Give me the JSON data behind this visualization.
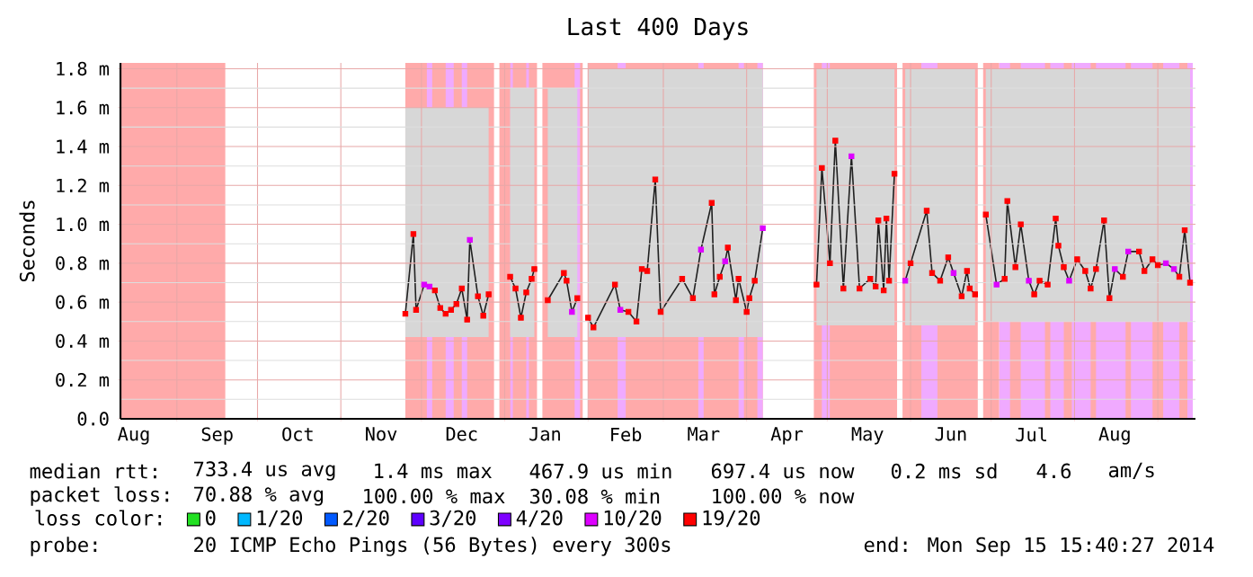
{
  "chart_data": {
    "type": "line",
    "title": "Last 400 Days",
    "ylabel": "Seconds",
    "xlim": [
      "2013-08-11",
      "2014-09-15"
    ],
    "xticks": [
      {
        "value": "2013-08-16",
        "label": "Aug"
      },
      {
        "value": "2013-09-01",
        "label": null
      },
      {
        "value": "2013-09-16",
        "label": "Sep"
      },
      {
        "value": "2013-10-01",
        "label": null
      },
      {
        "value": "2013-10-16",
        "label": "Oct"
      },
      {
        "value": "2013-11-01",
        "label": null
      },
      {
        "value": "2013-11-16",
        "label": "Nov"
      },
      {
        "value": "2013-12-01",
        "label": null
      },
      {
        "value": "2013-12-16",
        "label": "Dec"
      },
      {
        "value": "2014-01-01",
        "label": null
      },
      {
        "value": "2014-01-16",
        "label": "Jan"
      },
      {
        "value": "2014-02-01",
        "label": null
      },
      {
        "value": "2014-02-15",
        "label": "Feb"
      },
      {
        "value": "2014-03-01",
        "label": null
      },
      {
        "value": "2014-03-16",
        "label": "Mar"
      },
      {
        "value": "2014-04-01",
        "label": null
      },
      {
        "value": "2014-04-16",
        "label": "Apr"
      },
      {
        "value": "2014-05-01",
        "label": null
      },
      {
        "value": "2014-05-16",
        "label": "May"
      },
      {
        "value": "2014-06-01",
        "label": null
      },
      {
        "value": "2014-06-16",
        "label": "Jun"
      },
      {
        "value": "2014-07-01",
        "label": null
      },
      {
        "value": "2014-07-16",
        "label": "Jul"
      },
      {
        "value": "2014-08-01",
        "label": null
      },
      {
        "value": "2014-08-16",
        "label": "Aug"
      },
      {
        "value": "2014-09-01",
        "label": null
      }
    ],
    "ylim": [
      0,
      1.83
    ],
    "yticks": [
      {
        "value": 0,
        "label": "0.0"
      },
      {
        "value": 0.2,
        "label": "0.2 m"
      },
      {
        "value": 0.4,
        "label": "0.4 m"
      },
      {
        "value": 0.6,
        "label": "0.6 m"
      },
      {
        "value": 0.8,
        "label": "0.8 m"
      },
      {
        "value": 1.0,
        "label": "1.0 m"
      },
      {
        "value": 1.2,
        "label": "1.2 m"
      },
      {
        "value": 1.4,
        "label": "1.4 m"
      },
      {
        "value": 1.6,
        "label": "1.6 m"
      },
      {
        "value": 1.8,
        "label": "1.8 m"
      }
    ],
    "grid": true,
    "marker": "square",
    "legend": "bottom",
    "legend_title": "loss color:",
    "series": [
      {
        "type": "line",
        "color": "#202020",
        "marker": "none",
        "line_style": "solid",
        "x": [
          "2013-11-25",
          "2013-11-28",
          "2013-11-29",
          "2013-12-02",
          "2013-12-04",
          "2013-12-06",
          "2013-12-08",
          "2013-12-10",
          "2013-12-12",
          "2013-12-14",
          "2013-12-16",
          "2013-12-18",
          "2013-12-19",
          "2013-12-22",
          "2013-12-24",
          "2013-12-26",
          "2013-12-29",
          "2014-01-03",
          "2014-01-05",
          "2014-01-07",
          "2014-01-09",
          "2014-01-11",
          "2014-01-12",
          "2014-01-14",
          "2014-01-17",
          "2014-01-23",
          "2014-01-24",
          "2014-01-26",
          "2014-01-28",
          "2014-01-30",
          "2014-02-01",
          "2014-02-03",
          "2014-02-11",
          "2014-02-13",
          "2014-02-16",
          "2014-02-19",
          "2014-02-21",
          "2014-02-23",
          "2014-02-26",
          "2014-02-28",
          "2014-03-08",
          "2014-03-12",
          "2014-03-15",
          "2014-03-19",
          "2014-03-20",
          "2014-03-22",
          "2014-03-24",
          "2014-03-25",
          "2014-03-28",
          "2014-03-29",
          "2014-04-01",
          "2014-04-02",
          "2014-04-04",
          "2014-04-07",
          "2014-04-15",
          "2014-04-27",
          "2014-04-29",
          "2014-05-02",
          "2014-05-04",
          "2014-05-07",
          "2014-05-10",
          "2014-05-13",
          "2014-05-17",
          "2014-05-19",
          "2014-05-20",
          "2014-05-22",
          "2014-05-23",
          "2014-05-24",
          "2014-05-26",
          "2014-05-28",
          "2014-05-30",
          "2014-06-01",
          "2014-06-07",
          "2014-06-09",
          "2014-06-12",
          "2014-06-15",
          "2014-06-17",
          "2014-06-20",
          "2014-06-22",
          "2014-06-23",
          "2014-06-25",
          "2014-06-27",
          "2014-06-29",
          "2014-07-03",
          "2014-07-06",
          "2014-07-07",
          "2014-07-10",
          "2014-07-12",
          "2014-07-15",
          "2014-07-17",
          "2014-07-19",
          "2014-07-22",
          "2014-07-25",
          "2014-07-26",
          "2014-07-28",
          "2014-07-30",
          "2014-08-02",
          "2014-08-05",
          "2014-08-07",
          "2014-08-09",
          "2014-08-12",
          "2014-08-14",
          "2014-08-16",
          "2014-08-19",
          "2014-08-21",
          "2014-08-25",
          "2014-08-27",
          "2014-08-30",
          "2014-09-01",
          "2014-09-04",
          "2014-09-07",
          "2014-09-09",
          "2014-09-11",
          "2014-09-13"
        ],
        "values": [
          0.54,
          0.95,
          0.56,
          0.69,
          0.68,
          0.66,
          0.57,
          0.54,
          0.56,
          0.59,
          0.67,
          0.51,
          0.92,
          0.63,
          0.53,
          0.64,
          null,
          0.73,
          0.67,
          0.52,
          0.65,
          0.72,
          0.77,
          null,
          0.61,
          0.75,
          0.71,
          0.55,
          0.62,
          null,
          0.52,
          0.47,
          0.69,
          0.56,
          0.55,
          0.5,
          0.77,
          0.76,
          1.23,
          0.55,
          0.72,
          0.62,
          0.87,
          1.11,
          0.64,
          0.73,
          0.81,
          0.88,
          0.61,
          0.72,
          0.55,
          0.62,
          0.71,
          0.98,
          null,
          0.69,
          1.29,
          0.8,
          1.43,
          0.67,
          1.35,
          0.67,
          0.72,
          0.68,
          1.02,
          0.66,
          1.03,
          0.71,
          1.26,
          null,
          0.71,
          0.8,
          1.07,
          0.75,
          0.71,
          0.83,
          0.75,
          0.63,
          0.76,
          0.67,
          0.64,
          null,
          1.05,
          0.69,
          0.72,
          1.12,
          0.78,
          1.0,
          0.71,
          0.64,
          0.71,
          0.69,
          1.03,
          0.89,
          0.78,
          0.71,
          0.82,
          0.76,
          0.67,
          0.77,
          1.02,
          0.62,
          0.77,
          0.73,
          0.86,
          0.86,
          0.76,
          0.82,
          0.79,
          0.8,
          0.77,
          0.73,
          0.97,
          0.7
        ],
        "lower": [
          0.42,
          0.42,
          0.42,
          0.42,
          0.42,
          0.42,
          0.42,
          0.42,
          0.42,
          0.42,
          0.42,
          0.42,
          0.42,
          0.42,
          0.42,
          0.42,
          null,
          0.42,
          0.42,
          0.42,
          0.42,
          0.42,
          0.42,
          null,
          0.42,
          0.42,
          0.42,
          0.42,
          0.42,
          null,
          0.42,
          0.42,
          0.42,
          0.42,
          0.42,
          0.42,
          0.42,
          0.42,
          0.42,
          0.42,
          0.42,
          0.42,
          0.42,
          0.42,
          0.42,
          0.42,
          0.42,
          0.42,
          0.42,
          0.42,
          0.42,
          0.42,
          0.42,
          0.42,
          null,
          0.48,
          0.48,
          0.48,
          0.48,
          0.48,
          0.48,
          0.48,
          0.48,
          0.48,
          0.48,
          0.48,
          0.48,
          0.48,
          0.48,
          null,
          0.48,
          0.48,
          0.48,
          0.48,
          0.48,
          0.48,
          0.48,
          0.48,
          0.48,
          0.48,
          0.48,
          null,
          0.5,
          0.5,
          0.5,
          0.5,
          0.5,
          0.5,
          0.5,
          0.5,
          0.5,
          0.5,
          0.5,
          0.5,
          0.5,
          0.5,
          0.5,
          0.5,
          0.5,
          0.5,
          0.5,
          0.5,
          0.5,
          0.5,
          0.5,
          0.5,
          0.5,
          0.5,
          0.5,
          0.5,
          0.5,
          0.5,
          0.5,
          0.5
        ],
        "upper": [
          1.6,
          1.6,
          1.6,
          1.6,
          1.6,
          1.6,
          1.6,
          1.6,
          1.6,
          1.6,
          1.6,
          1.6,
          1.6,
          1.6,
          1.6,
          1.6,
          null,
          1.7,
          1.7,
          1.7,
          1.7,
          1.7,
          1.7,
          null,
          1.7,
          1.7,
          1.7,
          1.7,
          1.7,
          null,
          1.8,
          1.8,
          1.8,
          1.8,
          1.8,
          1.8,
          1.8,
          1.8,
          1.8,
          1.8,
          1.8,
          1.8,
          1.8,
          1.8,
          1.8,
          1.8,
          1.8,
          1.8,
          1.8,
          1.8,
          1.8,
          1.8,
          1.8,
          1.8,
          null,
          1.8,
          1.8,
          1.8,
          1.8,
          1.8,
          1.8,
          1.8,
          1.8,
          1.8,
          1.8,
          1.8,
          1.8,
          1.8,
          1.8,
          null,
          1.8,
          1.8,
          1.8,
          1.8,
          1.8,
          1.8,
          1.8,
          1.8,
          1.8,
          1.8,
          1.8,
          null,
          1.8,
          1.8,
          1.8,
          1.8,
          1.8,
          1.8,
          1.8,
          1.8,
          1.8,
          1.8,
          1.8,
          1.8,
          1.8,
          1.8,
          1.8,
          1.8,
          1.8,
          1.8,
          1.8,
          1.8,
          1.8,
          1.8,
          1.8,
          1.8,
          1.8,
          1.8,
          1.8,
          1.8,
          1.8,
          1.8,
          1.8,
          1.8
        ]
      },
      {
        "type": "scatter",
        "name": "0",
        "color": "#22e022"
      },
      {
        "type": "scatter",
        "name": "1/20",
        "color": "#00b8ff"
      },
      {
        "type": "scatter",
        "name": "2/20",
        "color": "#0059ff"
      },
      {
        "type": "scatter",
        "name": "3/20",
        "color": "#5e00ff"
      },
      {
        "type": "scatter",
        "name": "4/20",
        "color": "#7e00ff"
      },
      {
        "type": "scatter",
        "name": "10/20",
        "color": "#dd00ff",
        "x": [
          "2013-12-02",
          "2013-12-04",
          "2013-12-19",
          "2014-01-26",
          "2014-02-13",
          "2014-03-15",
          "2014-03-24",
          "2014-04-07",
          "2014-05-10",
          "2014-05-30",
          "2014-06-17",
          "2014-07-03",
          "2014-07-15",
          "2014-07-30",
          "2014-08-16",
          "2014-08-21",
          "2014-09-04",
          "2014-09-07"
        ],
        "values": [
          0.69,
          0.68,
          0.92,
          0.55,
          0.56,
          0.87,
          0.81,
          0.98,
          1.35,
          0.71,
          0.75,
          0.69,
          0.71,
          0.71,
          0.77,
          0.86,
          0.8,
          0.77
        ]
      },
      {
        "type": "scatter",
        "name": "19/20",
        "color": "#ff0000",
        "x": [
          "2013-11-25",
          "2013-11-28",
          "2013-11-29",
          "2013-12-06",
          "2013-12-08",
          "2013-12-10",
          "2013-12-12",
          "2013-12-14",
          "2013-12-16",
          "2013-12-18",
          "2013-12-22",
          "2013-12-24",
          "2013-12-26",
          "2014-01-03",
          "2014-01-05",
          "2014-01-07",
          "2014-01-09",
          "2014-01-11",
          "2014-01-12",
          "2014-01-17",
          "2014-01-23",
          "2014-01-24",
          "2014-01-28",
          "2014-02-01",
          "2014-02-03",
          "2014-02-11",
          "2014-02-16",
          "2014-02-19",
          "2014-02-21",
          "2014-02-23",
          "2014-02-26",
          "2014-02-28",
          "2014-03-08",
          "2014-03-12",
          "2014-03-19",
          "2014-03-20",
          "2014-03-22",
          "2014-03-25",
          "2014-03-28",
          "2014-03-29",
          "2014-04-01",
          "2014-04-02",
          "2014-04-04",
          "2014-04-27",
          "2014-04-29",
          "2014-05-02",
          "2014-05-04",
          "2014-05-07",
          "2014-05-13",
          "2014-05-17",
          "2014-05-19",
          "2014-05-20",
          "2014-05-22",
          "2014-05-23",
          "2014-05-24",
          "2014-05-26",
          "2014-06-01",
          "2014-06-07",
          "2014-06-09",
          "2014-06-12",
          "2014-06-15",
          "2014-06-20",
          "2014-06-22",
          "2014-06-23",
          "2014-06-25",
          "2014-06-29",
          "2014-07-06",
          "2014-07-07",
          "2014-07-10",
          "2014-07-12",
          "2014-07-17",
          "2014-07-19",
          "2014-07-22",
          "2014-07-25",
          "2014-07-26",
          "2014-07-28",
          "2014-08-02",
          "2014-08-05",
          "2014-08-07",
          "2014-08-09",
          "2014-08-12",
          "2014-08-14",
          "2014-08-19",
          "2014-08-25",
          "2014-08-27",
          "2014-08-30",
          "2014-09-01",
          "2014-09-09",
          "2014-09-11",
          "2014-09-13"
        ],
        "values": [
          0.54,
          0.95,
          0.56,
          0.66,
          0.57,
          0.54,
          0.56,
          0.59,
          0.67,
          0.51,
          0.63,
          0.53,
          0.64,
          0.73,
          0.67,
          0.52,
          0.65,
          0.72,
          0.77,
          0.61,
          0.75,
          0.71,
          0.62,
          0.52,
          0.47,
          0.69,
          0.55,
          0.5,
          0.77,
          0.76,
          1.23,
          0.55,
          0.72,
          0.62,
          1.11,
          0.64,
          0.73,
          0.88,
          0.61,
          0.72,
          0.55,
          0.62,
          0.71,
          0.69,
          1.29,
          0.8,
          1.43,
          0.67,
          0.67,
          0.72,
          0.68,
          1.02,
          0.66,
          1.03,
          0.71,
          1.26,
          0.8,
          1.07,
          0.75,
          0.71,
          0.83,
          0.63,
          0.76,
          0.67,
          0.64,
          1.05,
          0.72,
          1.12,
          0.78,
          1.0,
          0.64,
          0.71,
          0.69,
          1.03,
          0.89,
          0.78,
          0.82,
          0.76,
          0.67,
          0.77,
          1.02,
          0.62,
          0.73,
          0.86,
          0.76,
          0.82,
          0.79,
          0.73,
          0.97,
          0.7
        ]
      }
    ],
    "bands": [
      {
        "axis": "x",
        "from": "2013-08-11",
        "to": "2013-09-19",
        "color": "#ffaaaa"
      },
      {
        "axis": "x",
        "from": "2013-11-25",
        "to": "2013-12-28",
        "color": "#ffaaaa"
      },
      {
        "axis": "x",
        "from": "2013-12-30",
        "to": "2014-01-13",
        "color": "#ffaaaa"
      },
      {
        "axis": "x",
        "from": "2014-01-15",
        "to": "2014-01-30",
        "color": "#ffaaaa"
      },
      {
        "axis": "x",
        "from": "2014-02-01",
        "to": "2014-04-07",
        "color": "#ffaaaa"
      },
      {
        "axis": "x",
        "from": "2014-04-26",
        "to": "2014-05-27",
        "color": "#ffaaaa"
      },
      {
        "axis": "x",
        "from": "2014-05-29",
        "to": "2014-06-26",
        "color": "#ffaaaa"
      },
      {
        "axis": "x",
        "from": "2014-06-28",
        "to": "2014-07-04",
        "color": "#ffaaaa"
      },
      {
        "axis": "x",
        "from": "2013-12-03",
        "to": "2013-12-05",
        "color": "#f0aaff"
      },
      {
        "axis": "x",
        "from": "2013-12-10",
        "to": "2013-12-13",
        "color": "#f0aaff"
      },
      {
        "axis": "x",
        "from": "2013-12-16",
        "to": "2013-12-18",
        "color": "#f0aaff"
      },
      {
        "axis": "x",
        "from": "2014-01-03",
        "to": "2014-01-04",
        "color": "#f0aaff"
      },
      {
        "axis": "x",
        "from": "2014-01-09",
        "to": "2014-01-10",
        "color": "#f0aaff"
      },
      {
        "axis": "x",
        "from": "2014-01-27",
        "to": "2014-01-29",
        "color": "#f0aaff"
      },
      {
        "axis": "x",
        "from": "2014-02-12",
        "to": "2014-02-15",
        "color": "#f0aaff"
      },
      {
        "axis": "x",
        "from": "2014-03-14",
        "to": "2014-03-16",
        "color": "#f0aaff"
      },
      {
        "axis": "x",
        "from": "2014-03-29",
        "to": "2014-03-31",
        "color": "#f0aaff"
      },
      {
        "axis": "x",
        "from": "2014-04-05",
        "to": "2014-04-07",
        "color": "#f0aaff"
      },
      {
        "axis": "x",
        "from": "2014-04-29",
        "to": "2014-05-02",
        "color": "#f0aaff"
      },
      {
        "axis": "x",
        "from": "2014-06-05",
        "to": "2014-06-11",
        "color": "#f0aaff"
      },
      {
        "axis": "x",
        "from": "2014-07-04",
        "to": "2014-09-14",
        "color": "#f0aaff"
      },
      {
        "axis": "x",
        "from": "2014-07-08",
        "to": "2014-07-12",
        "color": "#ffaaaa"
      },
      {
        "axis": "x",
        "from": "2014-07-21",
        "to": "2014-07-23",
        "color": "#ffaaaa"
      },
      {
        "axis": "x",
        "from": "2014-07-28",
        "to": "2014-07-31",
        "color": "#ffaaaa"
      },
      {
        "axis": "x",
        "from": "2014-08-07",
        "to": "2014-08-09",
        "color": "#ffaaaa"
      },
      {
        "axis": "x",
        "from": "2014-08-20",
        "to": "2014-08-22",
        "color": "#ffaaaa"
      },
      {
        "axis": "x",
        "from": "2014-08-30",
        "to": "2014-09-03",
        "color": "#ffaaaa"
      },
      {
        "axis": "x",
        "from": "2014-09-09",
        "to": "2014-09-12",
        "color": "#ffaaaa"
      }
    ],
    "annotations": [
      "median rtt:",
      "733.4 us avg",
      "1.4 ms max",
      "467.9 us min",
      "697.4 us now",
      "0.2 ms sd",
      "4.6",
      "am/s",
      "packet loss:",
      "70.88 % avg",
      "100.00 % max",
      "30.08 % min",
      "100.00 % now",
      "probe:",
      "20 ICMP Echo Pings (56 Bytes) every 300s",
      "end: Mon Sep 15 15:40:27 2014"
    ]
  }
}
